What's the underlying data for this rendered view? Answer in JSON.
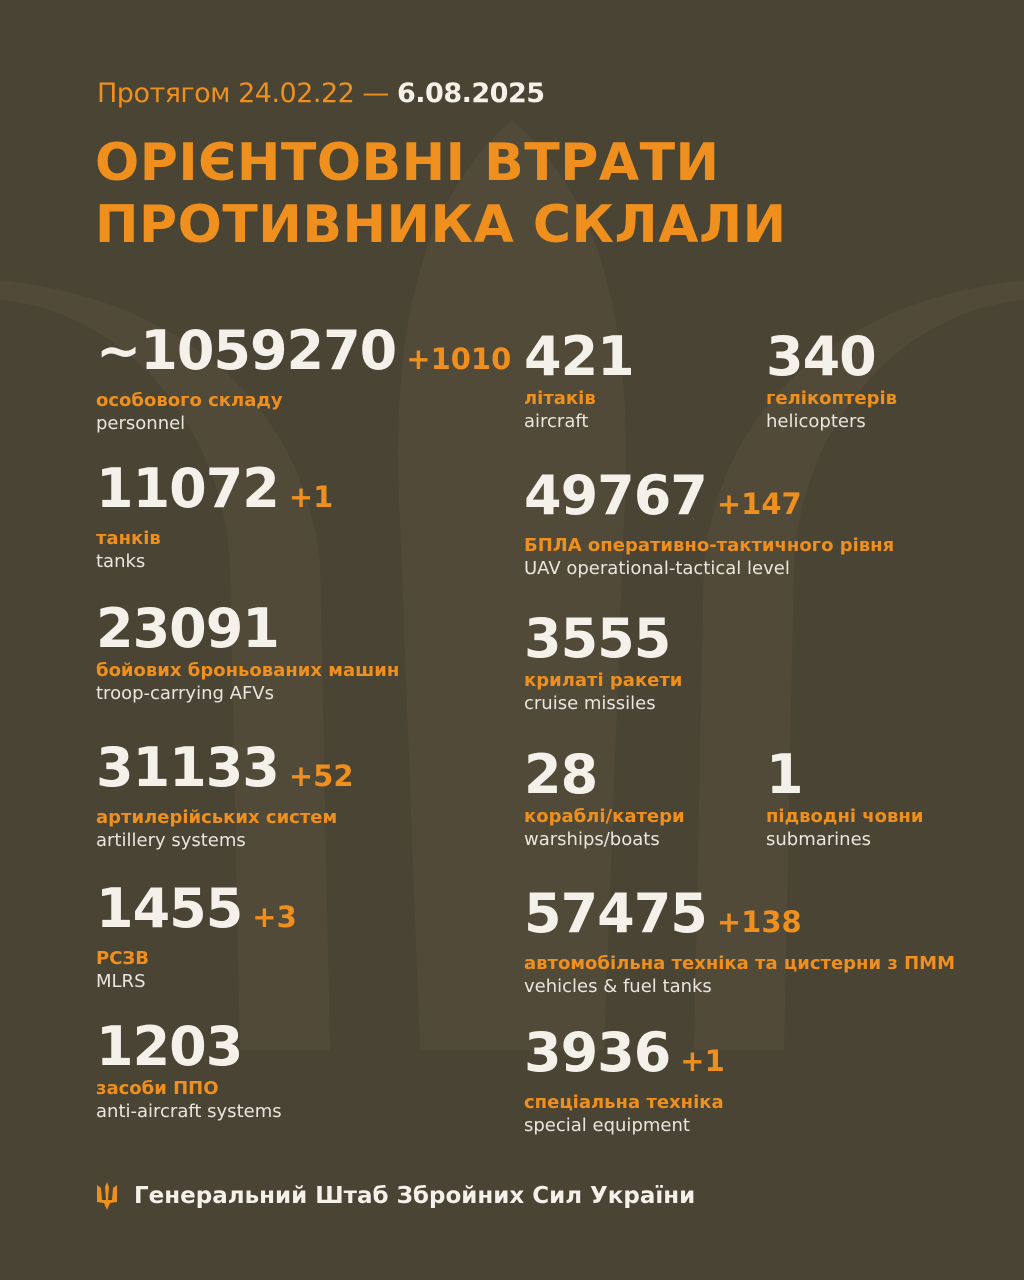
{
  "header": {
    "period_prefix": "Протягом 24.02.22 —",
    "period_end": "6.08.2025",
    "title_line1": "ОРІЄНТОВНІ ВТРАТИ",
    "title_line2": "ПРОТИВНИКА СКЛАЛИ"
  },
  "left": [
    {
      "value": "~1059270",
      "delta": "+1010",
      "ua": "особового складу",
      "en": "personnel"
    },
    {
      "value": "11072",
      "delta": "+1",
      "ua": "танків",
      "en": "tanks"
    },
    {
      "value": "23091",
      "delta": "",
      "ua": "бойових броньованих машин",
      "en": "troop-carrying AFVs"
    },
    {
      "value": "31133",
      "delta": "+52",
      "ua": "артилерійських систем",
      "en": "artillery systems"
    },
    {
      "value": "1455",
      "delta": "+3",
      "ua": "РСЗВ",
      "en": "MLRS"
    },
    {
      "value": "1203",
      "delta": "",
      "ua": "засоби ППО",
      "en": "anti-aircraft systems"
    }
  ],
  "right": [
    {
      "value": "421",
      "delta": "",
      "ua": "літаків",
      "en": "aircraft"
    },
    {
      "value": "340",
      "delta": "",
      "ua": "гелікоптерів",
      "en": "helicopters"
    },
    {
      "value": "49767",
      "delta": "+147",
      "ua": "БПЛА оперативно-тактичного рівня",
      "en": "UAV operational-tactical level"
    },
    {
      "value": "3555",
      "delta": "",
      "ua": "крилаті ракети",
      "en": "cruise missiles"
    },
    {
      "value": "28",
      "delta": "",
      "ua": "кораблі/катери",
      "en": "warships/boats"
    },
    {
      "value": "1",
      "delta": "",
      "ua": "підводні човни",
      "en": "submarines"
    },
    {
      "value": "57475",
      "delta": "+138",
      "ua": "автомобільна техніка та цистерни з ПММ",
      "en": "vehicles & fuel tanks"
    },
    {
      "value": "3936",
      "delta": "+1",
      "ua": "спеціальна техніка",
      "en": "special equipment"
    }
  ],
  "footer": {
    "org": "Генеральний Штаб Збройних Сил України",
    "logo_icon": "trident-icon"
  },
  "colors": {
    "background": "#4a4434",
    "accent": "#ee8f1e",
    "text": "#f4f1ea"
  }
}
